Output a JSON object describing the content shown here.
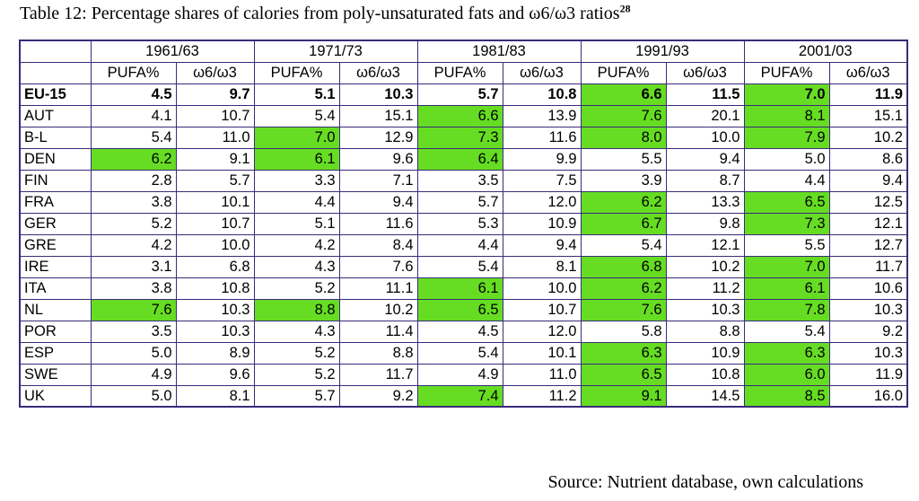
{
  "caption": {
    "text": "Table 12: Percentage shares of calories from poly-unsaturated fats and ω6/ω3 ratios",
    "footnote": "28"
  },
  "table": {
    "periods": [
      "1961/63",
      "1971/73",
      "1981/83",
      "1991/93",
      "2001/03"
    ],
    "subheaders": [
      "PUFA%",
      "ω6/ω3"
    ],
    "highlight_color": "#66dd22",
    "rows": [
      {
        "label": "EU-15",
        "bold": true,
        "values": [
          "4.5",
          "9.7",
          "5.1",
          "10.3",
          "5.7",
          "10.8",
          "6.6",
          "11.5",
          "7.0",
          "11.9"
        ],
        "highlight": [
          false,
          false,
          false,
          false,
          false,
          false,
          true,
          false,
          true,
          false
        ]
      },
      {
        "label": "AUT",
        "bold": false,
        "values": [
          "4.1",
          "10.7",
          "5.4",
          "15.1",
          "6.6",
          "13.9",
          "7.6",
          "20.1",
          "8.1",
          "15.1"
        ],
        "highlight": [
          false,
          false,
          false,
          false,
          true,
          false,
          true,
          false,
          true,
          false
        ]
      },
      {
        "label": "B-L",
        "bold": false,
        "values": [
          "5.4",
          "11.0",
          "7.0",
          "12.9",
          "7.3",
          "11.6",
          "8.0",
          "10.0",
          "7.9",
          "10.2"
        ],
        "highlight": [
          false,
          false,
          true,
          false,
          true,
          false,
          true,
          false,
          true,
          false
        ]
      },
      {
        "label": "DEN",
        "bold": false,
        "values": [
          "6.2",
          "9.1",
          "6.1",
          "9.6",
          "6.4",
          "9.9",
          "5.5",
          "9.4",
          "5.0",
          "8.6"
        ],
        "highlight": [
          true,
          false,
          true,
          false,
          true,
          false,
          false,
          false,
          false,
          false
        ]
      },
      {
        "label": "FIN",
        "bold": false,
        "values": [
          "2.8",
          "5.7",
          "3.3",
          "7.1",
          "3.5",
          "7.5",
          "3.9",
          "8.7",
          "4.4",
          "9.4"
        ],
        "highlight": [
          false,
          false,
          false,
          false,
          false,
          false,
          false,
          false,
          false,
          false
        ]
      },
      {
        "label": "FRA",
        "bold": false,
        "values": [
          "3.8",
          "10.1",
          "4.4",
          "9.4",
          "5.7",
          "12.0",
          "6.2",
          "13.3",
          "6.5",
          "12.5"
        ],
        "highlight": [
          false,
          false,
          false,
          false,
          false,
          false,
          true,
          false,
          true,
          false
        ]
      },
      {
        "label": "GER",
        "bold": false,
        "values": [
          "5.2",
          "10.7",
          "5.1",
          "11.6",
          "5.3",
          "10.9",
          "6.7",
          "9.8",
          "7.3",
          "12.1"
        ],
        "highlight": [
          false,
          false,
          false,
          false,
          false,
          false,
          true,
          false,
          true,
          false
        ]
      },
      {
        "label": "GRE",
        "bold": false,
        "values": [
          "4.2",
          "10.0",
          "4.2",
          "8.4",
          "4.4",
          "9.4",
          "5.4",
          "12.1",
          "5.5",
          "12.7"
        ],
        "highlight": [
          false,
          false,
          false,
          false,
          false,
          false,
          false,
          false,
          false,
          false
        ]
      },
      {
        "label": "IRE",
        "bold": false,
        "values": [
          "3.1",
          "6.8",
          "4.3",
          "7.6",
          "5.4",
          "8.1",
          "6.8",
          "10.2",
          "7.0",
          "11.7"
        ],
        "highlight": [
          false,
          false,
          false,
          false,
          false,
          false,
          true,
          false,
          true,
          false
        ]
      },
      {
        "label": "ITA",
        "bold": false,
        "values": [
          "3.8",
          "10.8",
          "5.2",
          "11.1",
          "6.1",
          "10.0",
          "6.2",
          "11.2",
          "6.1",
          "10.6"
        ],
        "highlight": [
          false,
          false,
          false,
          false,
          true,
          false,
          true,
          false,
          true,
          false
        ]
      },
      {
        "label": "NL",
        "bold": false,
        "values": [
          "7.6",
          "10.3",
          "8.8",
          "10.2",
          "6.5",
          "10.7",
          "7.6",
          "10.3",
          "7.8",
          "10.3"
        ],
        "highlight": [
          true,
          false,
          true,
          false,
          true,
          false,
          true,
          false,
          true,
          false
        ]
      },
      {
        "label": "POR",
        "bold": false,
        "values": [
          "3.5",
          "10.3",
          "4.3",
          "11.4",
          "4.5",
          "12.0",
          "5.8",
          "8.8",
          "5.4",
          "9.2"
        ],
        "highlight": [
          false,
          false,
          false,
          false,
          false,
          false,
          false,
          false,
          false,
          false
        ]
      },
      {
        "label": "ESP",
        "bold": false,
        "values": [
          "5.0",
          "8.9",
          "5.2",
          "8.8",
          "5.4",
          "10.1",
          "6.3",
          "10.9",
          "6.3",
          "10.3"
        ],
        "highlight": [
          false,
          false,
          false,
          false,
          false,
          false,
          true,
          false,
          true,
          false
        ]
      },
      {
        "label": "SWE",
        "bold": false,
        "values": [
          "4.9",
          "9.6",
          "5.2",
          "11.7",
          "4.9",
          "11.0",
          "6.5",
          "10.8",
          "6.0",
          "11.9"
        ],
        "highlight": [
          false,
          false,
          false,
          false,
          false,
          false,
          true,
          false,
          true,
          false
        ]
      },
      {
        "label": "UK",
        "bold": false,
        "values": [
          "5.0",
          "8.1",
          "5.7",
          "9.2",
          "7.4",
          "11.2",
          "9.1",
          "14.5",
          "8.5",
          "16.0"
        ],
        "highlight": [
          false,
          false,
          false,
          false,
          true,
          false,
          true,
          false,
          true,
          false
        ]
      }
    ]
  },
  "source": "Source: Nutrient database, own calculations"
}
